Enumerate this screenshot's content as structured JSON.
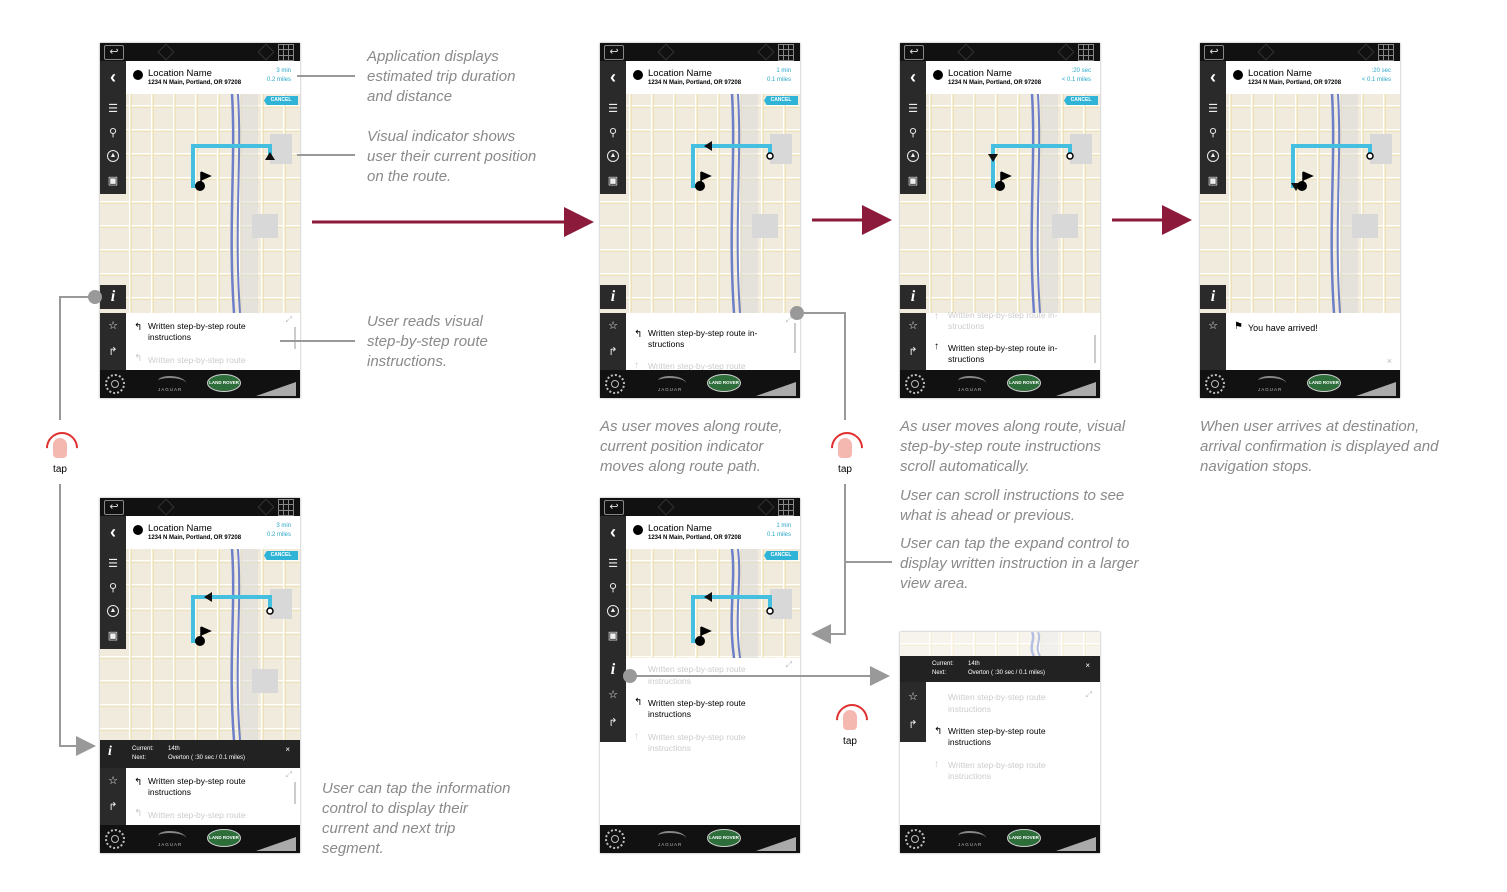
{
  "colors": {
    "route": "#44bfe0",
    "accent": "#2fb3d6",
    "flow_arrow": "#8c1a3a",
    "connector": "#999999",
    "tap": "#e03030"
  },
  "screen_common": {
    "location_name": "Location Name",
    "address": "1234 N Main, Portland, OR 97208",
    "cancel": "CANCEL",
    "instruction_1": "Written step-by-step route instructions",
    "instruction_wrap": "Written step-by-step route in-structions",
    "instructions_short": "Written step-by-step route",
    "instructions_word": "instructions",
    "jaguar": "JAGUAR",
    "land_rover": "LAND ROVER",
    "current_label": "Current:",
    "next_label": "Next:",
    "current_value": "14th",
    "next_value": "Overton ( :30 sec / 0.1 miles)",
    "arrived": "You have arrived!",
    "close": "×"
  },
  "screens": [
    {
      "id": "s1",
      "time": "3 min",
      "distance": "0.2 miles"
    },
    {
      "id": "s2",
      "time": "1 min",
      "distance": "0.1 miles"
    },
    {
      "id": "s3",
      "time": ":20 sec",
      "distance": "< 0.1 miles"
    },
    {
      "id": "s4",
      "time": ":20 sec",
      "distance": "< 0.1 miles"
    },
    {
      "id": "s5",
      "time": "3 min",
      "distance": "0.2 miles"
    },
    {
      "id": "s6",
      "time": "1 min",
      "distance": "0.1 miles"
    }
  ],
  "annotations": {
    "a1": "Application displays estimated trip duration and distance",
    "a2": "Visual indicator shows user their current position on the route.",
    "a3": "User reads visual step-by-step route instructions.",
    "a4": "As user moves along route, current position indicator moves along route path.",
    "a5": "As user moves along route, visual step-by-step route instructions scroll automatically.",
    "a6": "User can scroll instructions to see what is ahead or previous.",
    "a7": "User can tap the expand control to display written instruction in a larger view area.",
    "a8": "When user arrives at destination, arrival confirmation is displayed and navigation stops.",
    "a9": "User can tap the information control to display their current and next trip segment."
  },
  "tap_label": "tap",
  "icons": {
    "back": "back-arrow-icon",
    "menu": "menu-icon",
    "search": "search-icon",
    "compass": "compass-icon",
    "car": "car-icon",
    "star": "star-icon",
    "route": "route-icon",
    "gear": "gear-icon",
    "info": "info-icon",
    "flag": "flag-icon",
    "expand": "expand-icon"
  }
}
